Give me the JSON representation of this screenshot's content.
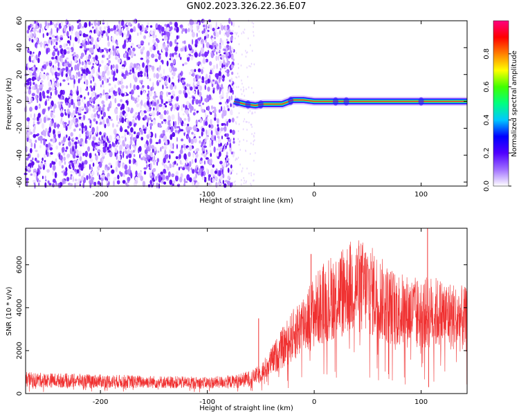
{
  "title": "GN02.2023.326.22.36.E07",
  "chart_data": [
    {
      "type": "heatmap",
      "xlabel": "Height of straight line (km)",
      "ylabel": "Frequency (Hz)",
      "xlim": [
        -270,
        143
      ],
      "ylim": [
        -63,
        60
      ],
      "xticks": [
        -200,
        -100,
        0,
        100
      ],
      "xtick_labels": [
        "-200",
        "-100",
        "0",
        "100"
      ],
      "yticks": [
        -60,
        -40,
        -20,
        0,
        20,
        40,
        60
      ],
      "ytick_labels": [
        "-60",
        "-40",
        "-20",
        "0",
        "20",
        "40",
        "60"
      ],
      "noise_region_x": [
        -270,
        -75
      ],
      "signal_track": {
        "x": [
          -75,
          -65,
          -55,
          -48,
          -40,
          -30,
          -20,
          -10,
          0,
          10,
          25,
          50,
          75,
          100,
          143
        ],
        "y": [
          0,
          -2,
          -3,
          -2,
          -2,
          -2,
          1,
          1,
          0,
          0,
          0,
          0,
          0,
          0,
          0
        ]
      },
      "colorbar": {
        "label": "Normalized spectral amplitude",
        "range": [
          0,
          1
        ],
        "ticks": [
          0.0,
          0.2,
          0.4,
          0.6,
          0.8
        ],
        "tick_labels": [
          "0.0",
          "0.2",
          "0.4",
          "0.6",
          "0.8"
        ],
        "colors": [
          "#ffffff",
          "#a070ff",
          "#5000ff",
          "#0000ff",
          "#00c8ff",
          "#00ff80",
          "#40ff00",
          "#ffff00",
          "#ff8000",
          "#ff0000",
          "#ff0080"
        ]
      },
      "grid": false
    },
    {
      "type": "line",
      "xlabel": "Height of straight line (km)",
      "ylabel": "SNR (10 * v/v)",
      "xlim": [
        -270,
        143
      ],
      "ylim": [
        0,
        7700
      ],
      "xticks": [
        -200,
        -100,
        0,
        100
      ],
      "xtick_labels": [
        "-200",
        "-100",
        "0",
        "100"
      ],
      "yticks": [
        0,
        2000,
        4000,
        6000
      ],
      "ytick_labels": [
        "0",
        "2000",
        "4000",
        "6000"
      ],
      "color": "#f03030",
      "grid": false,
      "envelope": {
        "x": [
          -270,
          -250,
          -200,
          -150,
          -100,
          -75,
          -60,
          -50,
          -40,
          -30,
          -20,
          -10,
          0,
          10,
          20,
          30,
          40,
          50,
          60,
          70,
          80,
          90,
          100,
          110,
          120,
          130,
          143
        ],
        "y": [
          650,
          620,
          580,
          540,
          500,
          560,
          700,
          950,
          1500,
          2100,
          2700,
          3300,
          3800,
          4300,
          4600,
          4900,
          5000,
          4900,
          4500,
          4100,
          3900,
          3800,
          3700,
          3800,
          3700,
          3600,
          3400
        ]
      },
      "spikes": [
        {
          "x": -52,
          "y": 3500
        },
        {
          "x": -3,
          "y": 6500
        },
        {
          "x": 44,
          "y": 6000
        },
        {
          "x": 106,
          "y": 7700
        },
        {
          "x": 107,
          "y": 300
        }
      ]
    }
  ]
}
